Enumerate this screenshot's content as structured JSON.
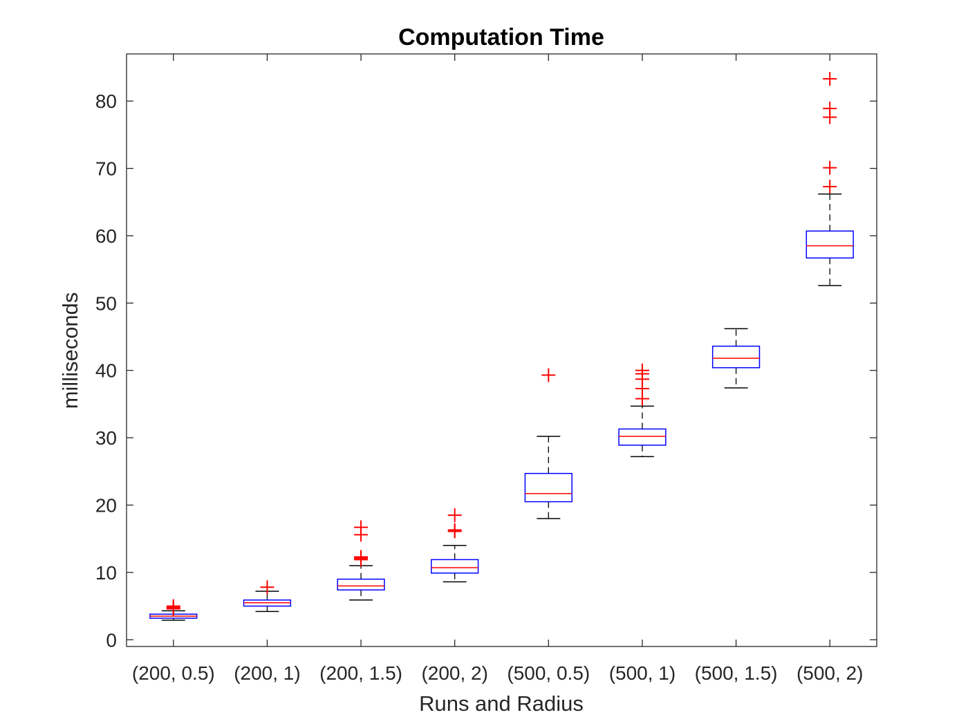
{
  "chart_data": {
    "type": "boxplot",
    "title": "Computation Time",
    "xlabel": "Runs and Radius",
    "ylabel": "milliseconds",
    "ylim": [
      -1,
      87
    ],
    "yticks": [
      0,
      10,
      20,
      30,
      40,
      50,
      60,
      70,
      80
    ],
    "grid": false,
    "colors": {
      "box": "#0000ff",
      "median": "#ff0000",
      "whisker": "#000000",
      "outlier": "#ff0000",
      "axis": "#262626"
    },
    "categories": [
      "(200, 0.5)",
      "(200, 1)",
      "(200, 1.5)",
      "(200, 2)",
      "(500, 0.5)",
      "(500, 1)",
      "(500, 1.5)",
      "(500, 2)"
    ],
    "boxes": [
      {
        "min": 2.9,
        "q1": 3.2,
        "median": 3.5,
        "q3": 3.8,
        "max": 4.3,
        "outliers": [
          4.6,
          4.7,
          4.8,
          5.0
        ]
      },
      {
        "min": 4.2,
        "q1": 5.0,
        "median": 5.5,
        "q3": 5.9,
        "max": 7.2,
        "outliers": [
          7.8
        ]
      },
      {
        "min": 5.9,
        "q1": 7.4,
        "median": 8.0,
        "q3": 9.0,
        "max": 11.0,
        "outliers": [
          11.9,
          12.1,
          12.3,
          15.6,
          16.7
        ]
      },
      {
        "min": 8.6,
        "q1": 9.9,
        "median": 10.7,
        "q3": 11.9,
        "max": 14.0,
        "outliers": [
          16.1,
          16.3,
          18.5
        ]
      },
      {
        "min": 18.0,
        "q1": 20.5,
        "median": 21.7,
        "q3": 24.7,
        "max": 30.2,
        "outliers": [
          39.3
        ]
      },
      {
        "min": 27.2,
        "q1": 28.9,
        "median": 30.2,
        "q3": 31.3,
        "max": 34.7,
        "outliers": [
          35.8,
          37.3,
          38.7,
          39.5,
          40.0
        ]
      },
      {
        "min": 37.4,
        "q1": 40.4,
        "median": 41.8,
        "q3": 43.6,
        "max": 46.2,
        "outliers": []
      },
      {
        "min": 52.6,
        "q1": 56.7,
        "median": 58.5,
        "q3": 60.7,
        "max": 66.2,
        "outliers": [
          67.3,
          70.1,
          77.6,
          78.9,
          83.3
        ]
      }
    ]
  }
}
